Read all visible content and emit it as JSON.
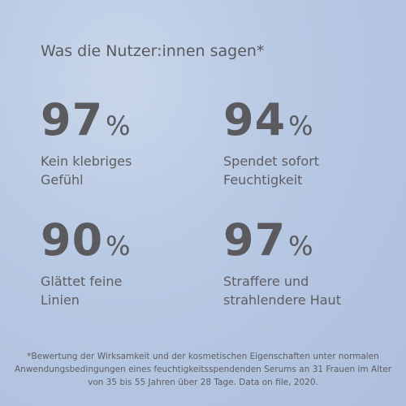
{
  "header": {
    "title": "Was die Nutzer:innen sagen*"
  },
  "stats": [
    {
      "value": 97,
      "unit": "%",
      "label": [
        "Kein klebriges",
        "Gefühl"
      ]
    },
    {
      "value": 94,
      "unit": "%",
      "label": [
        "Spendet sofort",
        "Feuchtigkeit"
      ]
    },
    {
      "value": 90,
      "unit": "%",
      "label": [
        "Glättet feine",
        "Linien"
      ]
    },
    {
      "value": 97,
      "unit": "%",
      "label": [
        "Straffere und",
        "strahlendere Haut"
      ]
    }
  ],
  "footnote": [
    "*Bewertung der Wirksamkeit und der kosmetischen Eigenschaften unter normalen",
    "Anwendungsbedingungen eines feuchtigkeitsspendenden Serums an 31 Frauen im Alter",
    "von 35 bis 55 Jahren über 28 Tage. Data on file, 2020."
  ]
}
